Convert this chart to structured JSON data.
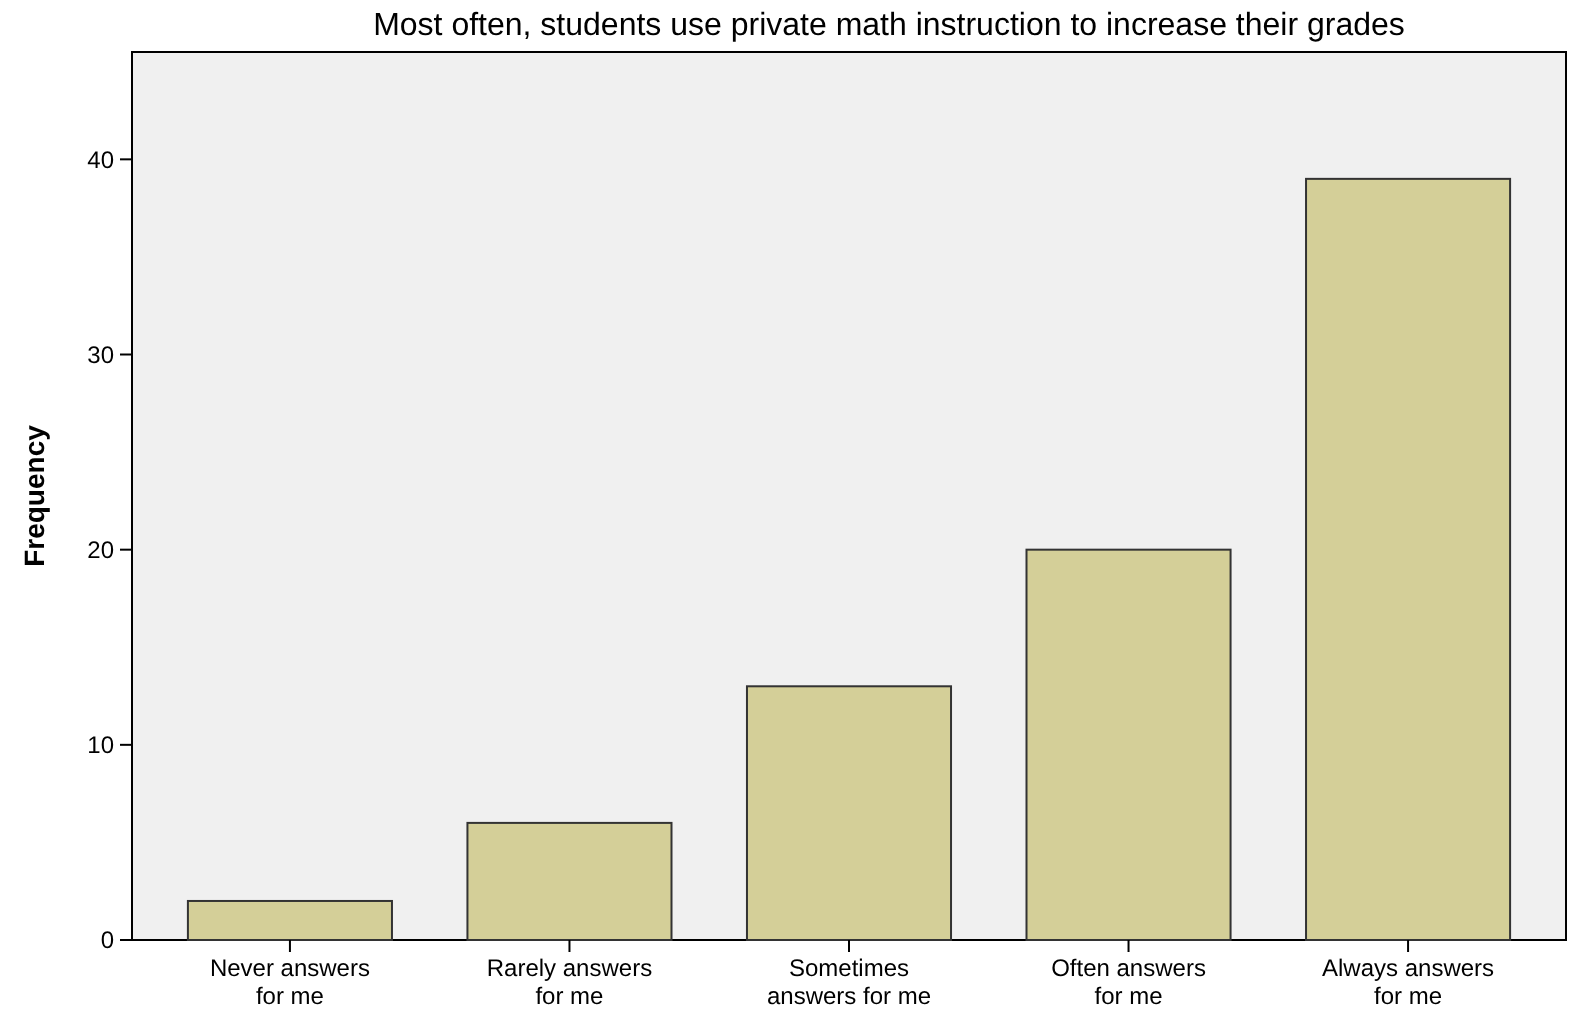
{
  "chart_data": {
    "type": "bar",
    "title": "Most often, students use private math instruction to increase their grades",
    "ylabel": "Frequency",
    "categories": [
      "Never answers for me",
      "Rarely answers for me",
      "Sometimes answers for me",
      "Often answers for me",
      "Always answers for me"
    ],
    "values": [
      2,
      6,
      13,
      20,
      39
    ],
    "color": "#d4cf98",
    "ylim": [
      0,
      45.5
    ],
    "yticks": [
      0,
      10,
      20,
      30,
      40
    ],
    "grid": false
  }
}
